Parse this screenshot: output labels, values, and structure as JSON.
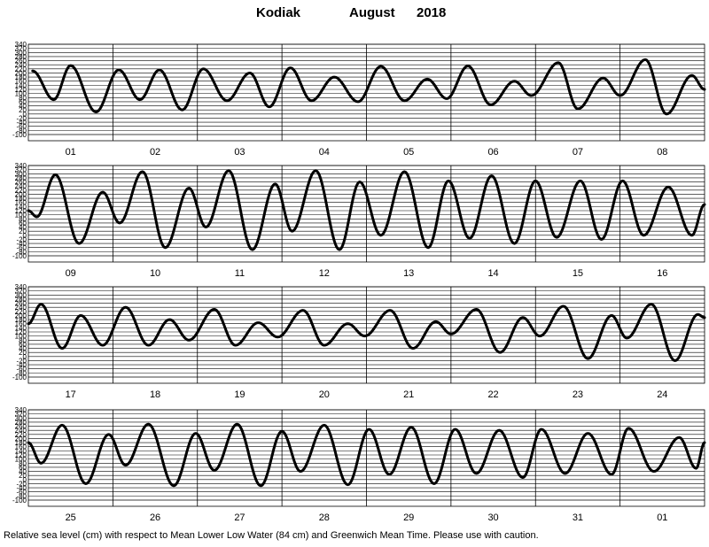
{
  "title": {
    "station": "Kodiak",
    "month": "August",
    "year": "2018"
  },
  "caption": "Relative sea level (cm) with respect to Mean Lower Low Water (84 cm) and Greenwich Mean Time. Please use with caution.",
  "chart_data": {
    "type": "line",
    "title": "Kodiak August 2018",
    "ylabel": "Relative sea level (cm)",
    "ylim": [
      -100,
      340
    ],
    "yticks": [
      340,
      320,
      300,
      280,
      260,
      240,
      220,
      200,
      180,
      160,
      140,
      120,
      100,
      80,
      60,
      40,
      20,
      0,
      -20,
      -40,
      -60,
      -80,
      -100
    ],
    "grid": true,
    "line_color": "#000000",
    "panels": [
      {
        "days": [
          "01",
          "02",
          "03",
          "04",
          "05",
          "06",
          "07",
          "08"
        ],
        "extrema": [
          [
            0.05,
            210
          ],
          [
            0.3,
            70
          ],
          [
            0.5,
            236
          ],
          [
            0.8,
            10
          ],
          [
            1.07,
            215
          ],
          [
            1.32,
            70
          ],
          [
            1.55,
            215
          ],
          [
            1.82,
            20
          ],
          [
            2.07,
            220
          ],
          [
            2.35,
            65
          ],
          [
            2.62,
            200
          ],
          [
            2.85,
            35
          ],
          [
            3.1,
            225
          ],
          [
            3.35,
            65
          ],
          [
            3.62,
            180
          ],
          [
            3.9,
            60
          ],
          [
            4.17,
            232
          ],
          [
            4.45,
            65
          ],
          [
            4.72,
            170
          ],
          [
            4.95,
            75
          ],
          [
            5.2,
            234
          ],
          [
            5.47,
            45
          ],
          [
            5.75,
            160
          ],
          [
            5.95,
            90
          ],
          [
            6.27,
            250
          ],
          [
            6.5,
            25
          ],
          [
            6.8,
            175
          ],
          [
            7.0,
            90
          ],
          [
            7.3,
            265
          ],
          [
            7.55,
            0
          ],
          [
            7.85,
            188
          ],
          [
            8.0,
            120
          ]
        ]
      },
      {
        "days": [
          "09",
          "10",
          "11",
          "12",
          "13",
          "14",
          "15",
          "16"
        ],
        "extrema": [
          [
            0.0,
            120
          ],
          [
            0.1,
            90
          ],
          [
            0.32,
            295
          ],
          [
            0.6,
            -40
          ],
          [
            0.88,
            210
          ],
          [
            1.08,
            60
          ],
          [
            1.35,
            310
          ],
          [
            1.62,
            -60
          ],
          [
            1.9,
            230
          ],
          [
            2.1,
            40
          ],
          [
            2.37,
            315
          ],
          [
            2.65,
            -70
          ],
          [
            2.92,
            250
          ],
          [
            3.12,
            20
          ],
          [
            3.4,
            315
          ],
          [
            3.68,
            -70
          ],
          [
            3.92,
            260
          ],
          [
            4.17,
            0
          ],
          [
            4.45,
            310
          ],
          [
            4.73,
            -60
          ],
          [
            4.97,
            265
          ],
          [
            5.22,
            -15
          ],
          [
            5.48,
            290
          ],
          [
            5.75,
            -40
          ],
          [
            6.0,
            265
          ],
          [
            6.25,
            -10
          ],
          [
            6.53,
            265
          ],
          [
            6.78,
            -20
          ],
          [
            7.03,
            265
          ],
          [
            7.28,
            0
          ],
          [
            7.57,
            235
          ],
          [
            7.85,
            0
          ],
          [
            8.0,
            150
          ]
        ]
      },
      {
        "days": [
          "17",
          "18",
          "19",
          "20",
          "21",
          "22",
          "23",
          "24"
        ],
        "extrema": [
          [
            0.0,
            160
          ],
          [
            0.15,
            255
          ],
          [
            0.4,
            40
          ],
          [
            0.62,
            200
          ],
          [
            0.88,
            55
          ],
          [
            1.15,
            240
          ],
          [
            1.42,
            55
          ],
          [
            1.67,
            180
          ],
          [
            1.9,
            80
          ],
          [
            2.2,
            230
          ],
          [
            2.45,
            55
          ],
          [
            2.72,
            165
          ],
          [
            2.95,
            95
          ],
          [
            3.25,
            225
          ],
          [
            3.5,
            55
          ],
          [
            3.78,
            160
          ],
          [
            3.98,
            100
          ],
          [
            4.28,
            225
          ],
          [
            4.55,
            40
          ],
          [
            4.82,
            170
          ],
          [
            5.0,
            110
          ],
          [
            5.3,
            230
          ],
          [
            5.58,
            20
          ],
          [
            5.85,
            190
          ],
          [
            6.05,
            100
          ],
          [
            6.33,
            245
          ],
          [
            6.62,
            -10
          ],
          [
            6.9,
            200
          ],
          [
            7.08,
            90
          ],
          [
            7.37,
            255
          ],
          [
            7.65,
            -20
          ],
          [
            7.92,
            205
          ],
          [
            8.0,
            190
          ]
        ]
      },
      {
        "days": [
          "25",
          "26",
          "27",
          "28",
          "29",
          "30",
          "31",
          "01"
        ],
        "extrema": [
          [
            0.0,
            180
          ],
          [
            0.15,
            80
          ],
          [
            0.4,
            265
          ],
          [
            0.68,
            -20
          ],
          [
            0.95,
            220
          ],
          [
            1.15,
            70
          ],
          [
            1.42,
            270
          ],
          [
            1.72,
            -30
          ],
          [
            1.98,
            225
          ],
          [
            2.2,
            45
          ],
          [
            2.47,
            270
          ],
          [
            2.75,
            -30
          ],
          [
            3.0,
            235
          ],
          [
            3.22,
            40
          ],
          [
            3.5,
            265
          ],
          [
            3.78,
            -25
          ],
          [
            4.03,
            245
          ],
          [
            4.27,
            25
          ],
          [
            4.53,
            255
          ],
          [
            4.8,
            -20
          ],
          [
            5.05,
            245
          ],
          [
            5.3,
            30
          ],
          [
            5.57,
            240
          ],
          [
            5.85,
            10
          ],
          [
            6.07,
            245
          ],
          [
            6.35,
            30
          ],
          [
            6.62,
            225
          ],
          [
            6.9,
            25
          ],
          [
            7.1,
            250
          ],
          [
            7.4,
            40
          ],
          [
            7.7,
            205
          ],
          [
            7.9,
            55
          ],
          [
            8.0,
            180
          ]
        ]
      }
    ]
  }
}
